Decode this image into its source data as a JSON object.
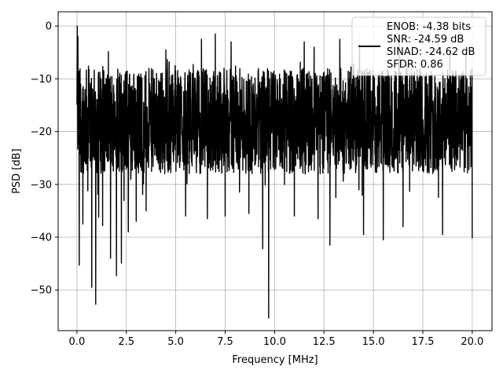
{
  "chart_data": {
    "type": "line",
    "xlabel": "Frequency [MHz]",
    "ylabel": "PSD [dB]",
    "xlim": [
      -0.95,
      21.0
    ],
    "ylim": [
      -57.7,
      2.7
    ],
    "xticks": [
      0.0,
      2.5,
      5.0,
      7.5,
      10.0,
      12.5,
      15.0,
      17.5,
      20.0
    ],
    "xtick_labels": [
      "0.0",
      "2.5",
      "5.0",
      "7.5",
      "10.0",
      "12.5",
      "15.0",
      "17.5",
      "20.0"
    ],
    "yticks": [
      0,
      -10,
      -20,
      -30,
      -40,
      -50
    ],
    "ytick_labels": [
      "0",
      "−10",
      "−20",
      "−30",
      "−40",
      "−50"
    ],
    "grid": true,
    "legend_position": "top-right",
    "legend_entries": [
      "ENOB: -4.38 bits",
      "SNR: -24.59 dB",
      "SINAD: -24.62 dB",
      "SFDR: 0.86"
    ],
    "series_color": "#000000",
    "x_range": [
      0.0,
      20.0
    ],
    "noise_floor_db": [
      -28,
      -8
    ],
    "peak": {
      "x": 0.02,
      "y": 0.0
    },
    "dips": [
      {
        "x": 0.12,
        "y": -45.3
      },
      {
        "x": 0.3,
        "y": -37.5
      },
      {
        "x": 0.55,
        "y": -31.2
      },
      {
        "x": 0.75,
        "y": -49.5
      },
      {
        "x": 0.95,
        "y": -52.7
      },
      {
        "x": 1.1,
        "y": -36.2
      },
      {
        "x": 1.3,
        "y": -37.8
      },
      {
        "x": 1.7,
        "y": -44.0
      },
      {
        "x": 2.0,
        "y": -47.3
      },
      {
        "x": 2.25,
        "y": -44.9
      },
      {
        "x": 2.6,
        "y": -39.0
      },
      {
        "x": 3.0,
        "y": -37.0
      },
      {
        "x": 3.5,
        "y": -35.0
      },
      {
        "x": 5.5,
        "y": -36.0
      },
      {
        "x": 6.3,
        "y": -44.7
      },
      {
        "x": 6.6,
        "y": -36.5
      },
      {
        "x": 7.5,
        "y": -36.0
      },
      {
        "x": 8.7,
        "y": -35.5
      },
      {
        "x": 9.4,
        "y": -42.2
      },
      {
        "x": 9.7,
        "y": -55.3
      },
      {
        "x": 11.0,
        "y": -36.0
      },
      {
        "x": 12.2,
        "y": -36.5
      },
      {
        "x": 12.8,
        "y": -41.5
      },
      {
        "x": 14.5,
        "y": -39.5
      },
      {
        "x": 15.5,
        "y": -40.5
      },
      {
        "x": 16.5,
        "y": -38.0
      },
      {
        "x": 18.5,
        "y": -39.5
      },
      {
        "x": 20.0,
        "y": -40.2
      }
    ],
    "spikes": [
      {
        "x": 0.05,
        "y": -2.0
      },
      {
        "x": 4.5,
        "y": -4.5
      },
      {
        "x": 6.3,
        "y": -2.5
      },
      {
        "x": 7.0,
        "y": -1.5
      },
      {
        "x": 7.8,
        "y": -3.0
      },
      {
        "x": 11.5,
        "y": -3.0
      },
      {
        "x": 12.0,
        "y": -4.0
      },
      {
        "x": 13.3,
        "y": -2.5
      },
      {
        "x": 14.3,
        "y": -3.5
      },
      {
        "x": 16.3,
        "y": -3.0
      }
    ]
  }
}
